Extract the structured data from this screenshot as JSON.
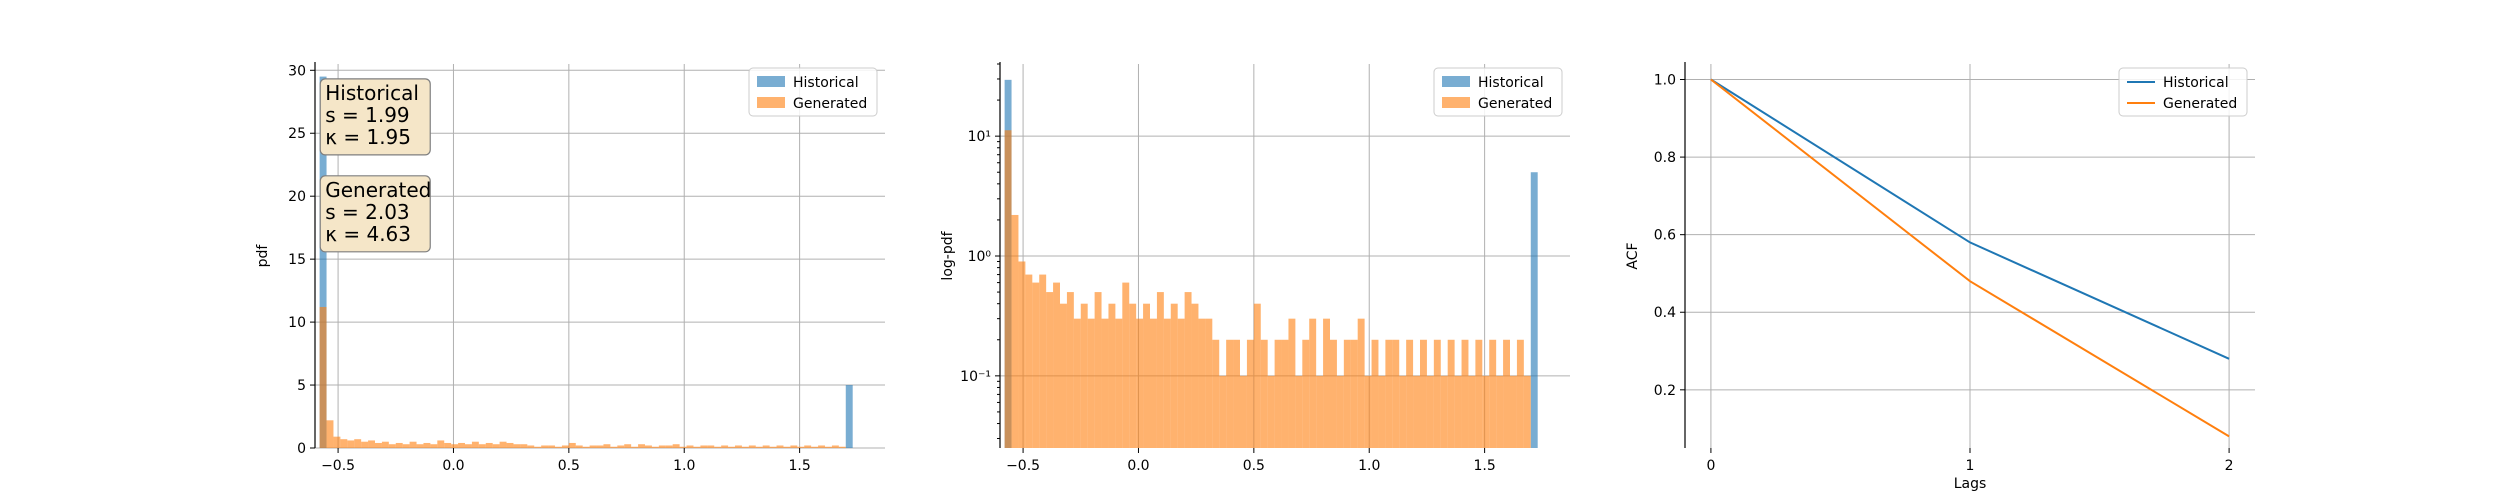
{
  "colors": {
    "historical": "#1f77b4",
    "generated": "#ff7f0e",
    "stats_box_fill": "#f5e6c8",
    "stats_box_edge": "#7f7f7f",
    "grid": "#b0b0b0"
  },
  "chart_data": [
    {
      "type": "bar",
      "ylabel": "pdf",
      "xlabel": "",
      "xlim": [
        -0.6,
        1.87
      ],
      "ylim": [
        0,
        30.5
      ],
      "x_ticks": [
        -0.5,
        0.0,
        0.5,
        1.0,
        1.5
      ],
      "x_tick_labels": [
        "−0.5",
        "0.0",
        "0.5",
        "1.0",
        "1.5"
      ],
      "y_ticks": [
        0,
        5,
        10,
        15,
        20,
        25,
        30
      ],
      "y_tick_labels": [
        "0",
        "5",
        "10",
        "15",
        "20",
        "25",
        "30"
      ],
      "grid": true,
      "legend": {
        "placement": "top-right",
        "entries": [
          "Historical",
          "Generated"
        ]
      },
      "bin_width": 0.03,
      "series": [
        {
          "name": "Historical",
          "bins": [
            {
              "x": -0.58,
              "y": 29.5
            },
            {
              "x": 1.7,
              "y": 5.0
            }
          ]
        },
        {
          "name": "Generated",
          "bins": [
            {
              "x": -0.58,
              "y": 11.2
            },
            {
              "x": -0.55,
              "y": 2.2
            },
            {
              "x": -0.52,
              "y": 0.9
            },
            {
              "x": -0.49,
              "y": 0.7
            },
            {
              "x": -0.46,
              "y": 0.6
            },
            {
              "x": -0.43,
              "y": 0.7
            },
            {
              "x": -0.4,
              "y": 0.5
            },
            {
              "x": -0.37,
              "y": 0.6
            },
            {
              "x": -0.34,
              "y": 0.4
            },
            {
              "x": -0.31,
              "y": 0.5
            },
            {
              "x": -0.28,
              "y": 0.3
            },
            {
              "x": -0.25,
              "y": 0.4
            },
            {
              "x": -0.22,
              "y": 0.3
            },
            {
              "x": -0.19,
              "y": 0.5
            },
            {
              "x": -0.16,
              "y": 0.3
            },
            {
              "x": -0.13,
              "y": 0.4
            },
            {
              "x": -0.1,
              "y": 0.3
            },
            {
              "x": -0.07,
              "y": 0.6
            },
            {
              "x": -0.04,
              "y": 0.4
            },
            {
              "x": -0.01,
              "y": 0.3
            },
            {
              "x": 0.02,
              "y": 0.4
            },
            {
              "x": 0.05,
              "y": 0.3
            },
            {
              "x": 0.08,
              "y": 0.5
            },
            {
              "x": 0.11,
              "y": 0.3
            },
            {
              "x": 0.14,
              "y": 0.4
            },
            {
              "x": 0.17,
              "y": 0.3
            },
            {
              "x": 0.2,
              "y": 0.5
            },
            {
              "x": 0.23,
              "y": 0.4
            },
            {
              "x": 0.26,
              "y": 0.3
            },
            {
              "x": 0.29,
              "y": 0.3
            },
            {
              "x": 0.32,
              "y": 0.2
            },
            {
              "x": 0.35,
              "y": 0.1
            },
            {
              "x": 0.38,
              "y": 0.2
            },
            {
              "x": 0.41,
              "y": 0.2
            },
            {
              "x": 0.44,
              "y": 0.1
            },
            {
              "x": 0.47,
              "y": 0.2
            },
            {
              "x": 0.5,
              "y": 0.4
            },
            {
              "x": 0.53,
              "y": 0.2
            },
            {
              "x": 0.56,
              "y": 0.1
            },
            {
              "x": 0.59,
              "y": 0.2
            },
            {
              "x": 0.62,
              "y": 0.2
            },
            {
              "x": 0.65,
              "y": 0.3
            },
            {
              "x": 0.68,
              "y": 0.1
            },
            {
              "x": 0.71,
              "y": 0.2
            },
            {
              "x": 0.74,
              "y": 0.3
            },
            {
              "x": 0.77,
              "y": 0.1
            },
            {
              "x": 0.8,
              "y": 0.3
            },
            {
              "x": 0.83,
              "y": 0.2
            },
            {
              "x": 0.86,
              "y": 0.1
            },
            {
              "x": 0.89,
              "y": 0.2
            },
            {
              "x": 0.92,
              "y": 0.2
            },
            {
              "x": 0.95,
              "y": 0.3
            },
            {
              "x": 0.98,
              "y": 0.1
            },
            {
              "x": 1.01,
              "y": 0.2
            },
            {
              "x": 1.04,
              "y": 0.1
            },
            {
              "x": 1.07,
              "y": 0.2
            },
            {
              "x": 1.1,
              "y": 0.2
            },
            {
              "x": 1.13,
              "y": 0.1
            },
            {
              "x": 1.16,
              "y": 0.2
            },
            {
              "x": 1.19,
              "y": 0.1
            },
            {
              "x": 1.22,
              "y": 0.2
            },
            {
              "x": 1.25,
              "y": 0.1
            },
            {
              "x": 1.28,
              "y": 0.2
            },
            {
              "x": 1.31,
              "y": 0.1
            },
            {
              "x": 1.34,
              "y": 0.2
            },
            {
              "x": 1.37,
              "y": 0.1
            },
            {
              "x": 1.4,
              "y": 0.2
            },
            {
              "x": 1.43,
              "y": 0.1
            },
            {
              "x": 1.46,
              "y": 0.2
            },
            {
              "x": 1.49,
              "y": 0.1
            },
            {
              "x": 1.52,
              "y": 0.2
            },
            {
              "x": 1.55,
              "y": 0.1
            },
            {
              "x": 1.58,
              "y": 0.2
            },
            {
              "x": 1.61,
              "y": 0.1
            },
            {
              "x": 1.64,
              "y": 0.2
            },
            {
              "x": 1.67,
              "y": 0.1
            }
          ]
        }
      ],
      "annotations": [
        {
          "lines": [
            "Historical",
            "s = 1.99",
            "κ = 1.95"
          ],
          "anchor_x": -0.56,
          "anchor_y": 29.0
        },
        {
          "lines": [
            "Generated",
            "s = 2.03",
            "κ = 4.63"
          ],
          "anchor_x": -0.56,
          "anchor_y": 21.3
        }
      ]
    },
    {
      "type": "bar",
      "ylabel": "log-pdf",
      "xlabel": "",
      "yscale": "log",
      "xlim": [
        -0.6,
        1.87
      ],
      "ylim": [
        0.025,
        40
      ],
      "x_ticks": [
        -0.5,
        0.0,
        0.5,
        1.0,
        1.5
      ],
      "x_tick_labels": [
        "−0.5",
        "0.0",
        "0.5",
        "1.0",
        "1.5"
      ],
      "y_ticks": [
        0.1,
        1,
        10
      ],
      "y_tick_labels": [
        "10⁻¹",
        "10⁰",
        "10¹"
      ],
      "grid": true,
      "legend": {
        "placement": "top-right",
        "entries": [
          "Historical",
          "Generated"
        ]
      },
      "bin_width": 0.03,
      "series": [
        {
          "name": "Historical",
          "bins": [
            {
              "x": -0.58,
              "y": 29.5
            },
            {
              "x": 1.7,
              "y": 5.0
            }
          ]
        },
        {
          "name": "Generated",
          "bins": [
            {
              "x": -0.58,
              "y": 11.2
            },
            {
              "x": -0.55,
              "y": 2.2
            },
            {
              "x": -0.52,
              "y": 0.9
            },
            {
              "x": -0.49,
              "y": 0.7
            },
            {
              "x": -0.46,
              "y": 0.6
            },
            {
              "x": -0.43,
              "y": 0.7
            },
            {
              "x": -0.4,
              "y": 0.5
            },
            {
              "x": -0.37,
              "y": 0.6
            },
            {
              "x": -0.34,
              "y": 0.4
            },
            {
              "x": -0.31,
              "y": 0.5
            },
            {
              "x": -0.28,
              "y": 0.3
            },
            {
              "x": -0.25,
              "y": 0.4
            },
            {
              "x": -0.22,
              "y": 0.3
            },
            {
              "x": -0.19,
              "y": 0.5
            },
            {
              "x": -0.16,
              "y": 0.3
            },
            {
              "x": -0.13,
              "y": 0.4
            },
            {
              "x": -0.1,
              "y": 0.3
            },
            {
              "x": -0.07,
              "y": 0.6
            },
            {
              "x": -0.04,
              "y": 0.4
            },
            {
              "x": -0.01,
              "y": 0.3
            },
            {
              "x": 0.02,
              "y": 0.4
            },
            {
              "x": 0.05,
              "y": 0.3
            },
            {
              "x": 0.08,
              "y": 0.5
            },
            {
              "x": 0.11,
              "y": 0.3
            },
            {
              "x": 0.14,
              "y": 0.4
            },
            {
              "x": 0.17,
              "y": 0.3
            },
            {
              "x": 0.2,
              "y": 0.5
            },
            {
              "x": 0.23,
              "y": 0.4
            },
            {
              "x": 0.26,
              "y": 0.3
            },
            {
              "x": 0.29,
              "y": 0.3
            },
            {
              "x": 0.32,
              "y": 0.2
            },
            {
              "x": 0.35,
              "y": 0.1
            },
            {
              "x": 0.38,
              "y": 0.2
            },
            {
              "x": 0.41,
              "y": 0.2
            },
            {
              "x": 0.44,
              "y": 0.1
            },
            {
              "x": 0.47,
              "y": 0.2
            },
            {
              "x": 0.5,
              "y": 0.4
            },
            {
              "x": 0.53,
              "y": 0.2
            },
            {
              "x": 0.56,
              "y": 0.1
            },
            {
              "x": 0.59,
              "y": 0.2
            },
            {
              "x": 0.62,
              "y": 0.2
            },
            {
              "x": 0.65,
              "y": 0.3
            },
            {
              "x": 0.68,
              "y": 0.1
            },
            {
              "x": 0.71,
              "y": 0.2
            },
            {
              "x": 0.74,
              "y": 0.3
            },
            {
              "x": 0.77,
              "y": 0.1
            },
            {
              "x": 0.8,
              "y": 0.3
            },
            {
              "x": 0.83,
              "y": 0.2
            },
            {
              "x": 0.86,
              "y": 0.1
            },
            {
              "x": 0.89,
              "y": 0.2
            },
            {
              "x": 0.92,
              "y": 0.2
            },
            {
              "x": 0.95,
              "y": 0.3
            },
            {
              "x": 0.98,
              "y": 0.1
            },
            {
              "x": 1.01,
              "y": 0.2
            },
            {
              "x": 1.04,
              "y": 0.1
            },
            {
              "x": 1.07,
              "y": 0.2
            },
            {
              "x": 1.1,
              "y": 0.2
            },
            {
              "x": 1.13,
              "y": 0.1
            },
            {
              "x": 1.16,
              "y": 0.2
            },
            {
              "x": 1.19,
              "y": 0.1
            },
            {
              "x": 1.22,
              "y": 0.2
            },
            {
              "x": 1.25,
              "y": 0.1
            },
            {
              "x": 1.28,
              "y": 0.2
            },
            {
              "x": 1.31,
              "y": 0.1
            },
            {
              "x": 1.34,
              "y": 0.2
            },
            {
              "x": 1.37,
              "y": 0.1
            },
            {
              "x": 1.4,
              "y": 0.2
            },
            {
              "x": 1.43,
              "y": 0.1
            },
            {
              "x": 1.46,
              "y": 0.2
            },
            {
              "x": 1.49,
              "y": 0.1
            },
            {
              "x": 1.52,
              "y": 0.2
            },
            {
              "x": 1.55,
              "y": 0.1
            },
            {
              "x": 1.58,
              "y": 0.2
            },
            {
              "x": 1.61,
              "y": 0.1
            },
            {
              "x": 1.64,
              "y": 0.2
            },
            {
              "x": 1.67,
              "y": 0.1
            }
          ]
        }
      ]
    },
    {
      "type": "line",
      "xlabel": "Lags",
      "ylabel": "ACF",
      "xlim": [
        -0.1,
        2.1
      ],
      "ylim": [
        0.05,
        1.04
      ],
      "x_ticks": [
        0,
        1,
        2
      ],
      "x_tick_labels": [
        "0",
        "1",
        "2"
      ],
      "y_ticks": [
        0.2,
        0.4,
        0.6,
        0.8,
        1.0
      ],
      "y_tick_labels": [
        "0.2",
        "0.4",
        "0.6",
        "0.8",
        "1.0"
      ],
      "grid": true,
      "legend": {
        "placement": "top-right",
        "entries": [
          "Historical",
          "Generated"
        ]
      },
      "series": [
        {
          "name": "Historical",
          "x": [
            0,
            1,
            2
          ],
          "values": [
            1.0,
            0.58,
            0.28
          ]
        },
        {
          "name": "Generated",
          "x": [
            0,
            1,
            2
          ],
          "values": [
            1.0,
            0.48,
            0.08
          ]
        }
      ]
    }
  ]
}
